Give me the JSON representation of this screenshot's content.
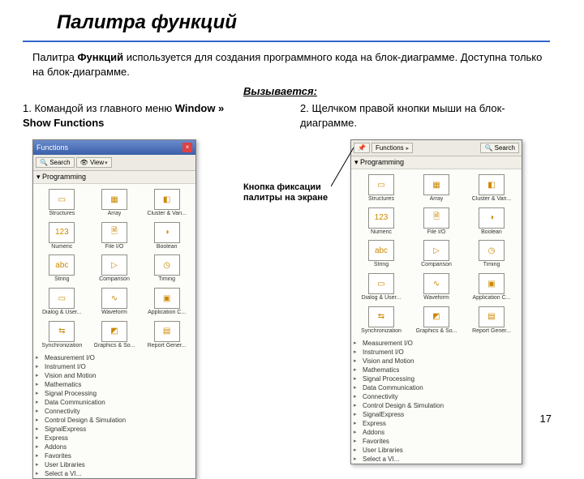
{
  "title": "Палитра функций",
  "intro_html": "Палитра <b>Функций</b> используется для создания программного кода на блок-диаграмме. Доступна только на блок-диаграмме.",
  "calls_header": "Вызывается:",
  "method1_html": "1. Командой из главного меню <b>Window » Show Functions</b>",
  "method2_html": "2. Щелчком правой кнопки мыши на блок-диаграмме.",
  "callout": "Кнопка фиксации палитры на экране",
  "page_number": "17",
  "colors": {
    "rule": "#3366cc",
    "titlebar_top": "#6b8cce",
    "titlebar_bottom": "#3a5fa8",
    "panel_bg": "#f8f8f4"
  },
  "palette": {
    "window_title": "Functions",
    "toolbar": {
      "search": "Search",
      "view": "View",
      "pin": "📌"
    },
    "section": "Programming",
    "icons": [
      {
        "label": "Structures",
        "glyph": "▭"
      },
      {
        "label": "Array",
        "glyph": "▦"
      },
      {
        "label": "Cluster & Vari...",
        "glyph": "◧"
      },
      {
        "label": "Numeric",
        "glyph": "123"
      },
      {
        "label": "File I/O",
        "glyph": "🗎"
      },
      {
        "label": "Boolean",
        "glyph": "◑"
      },
      {
        "label": "String",
        "glyph": "abc"
      },
      {
        "label": "Comparison",
        "glyph": "▷"
      },
      {
        "label": "Timing",
        "glyph": "◷"
      },
      {
        "label": "Dialog & User...",
        "glyph": "▭"
      },
      {
        "label": "Waveform",
        "glyph": "∿"
      },
      {
        "label": "Application C...",
        "glyph": "▣"
      },
      {
        "label": "Synchronization",
        "glyph": "⇆"
      },
      {
        "label": "Graphics & So...",
        "glyph": "◩"
      },
      {
        "label": "Report Gener...",
        "glyph": "▤"
      }
    ],
    "categories": [
      "Measurement I/O",
      "Instrument I/O",
      "Vision and Motion",
      "Mathematics",
      "Signal Processing",
      "Data Communication",
      "Connectivity",
      "Control Design & Simulation",
      "SignalExpress",
      "Express",
      "Addons",
      "Favorites",
      "User Libraries",
      "Select a VI..."
    ]
  }
}
